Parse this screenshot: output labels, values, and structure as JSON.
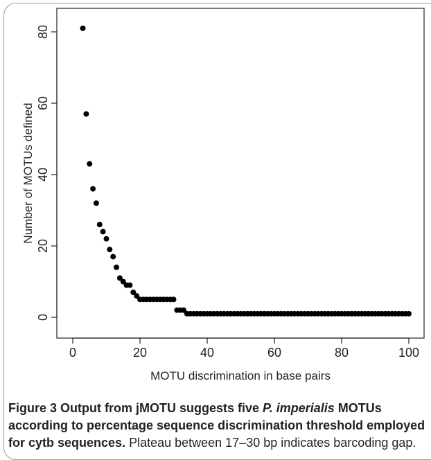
{
  "chart_data": {
    "type": "scatter",
    "title": "",
    "xlabel": "MOTU discrimination in base pairs",
    "ylabel": "Number of MOTUs defined",
    "xlim": [
      0,
      100
    ],
    "ylim": [
      0,
      80
    ],
    "xticks": [
      "0",
      "20",
      "40",
      "60",
      "80",
      "100"
    ],
    "yticks": [
      "0",
      "20",
      "40",
      "60",
      "80"
    ],
    "grid": false,
    "marker_color": "#000000",
    "x": [
      3,
      4,
      5,
      6,
      7,
      8,
      9,
      10,
      11,
      12,
      13,
      14,
      15,
      16,
      17,
      18,
      19,
      20,
      21,
      22,
      23,
      24,
      25,
      26,
      27,
      28,
      29,
      30,
      31,
      32,
      33,
      34,
      35,
      36,
      37,
      38,
      39,
      40,
      41,
      42,
      43,
      44,
      45,
      46,
      47,
      48,
      49,
      50,
      51,
      52,
      53,
      54,
      55,
      56,
      57,
      58,
      59,
      60,
      61,
      62,
      63,
      64,
      65,
      66,
      67,
      68,
      69,
      70,
      71,
      72,
      73,
      74,
      75,
      76,
      77,
      78,
      79,
      80,
      81,
      82,
      83,
      84,
      85,
      86,
      87,
      88,
      89,
      90,
      91,
      92,
      93,
      94,
      95,
      96,
      97,
      98,
      99,
      100
    ],
    "y": [
      81,
      57,
      43,
      36,
      32,
      26,
      24,
      22,
      19,
      17,
      14,
      11,
      10,
      9,
      9,
      7,
      6,
      5,
      5,
      5,
      5,
      5,
      5,
      5,
      5,
      5,
      5,
      5,
      2,
      2,
      2,
      1,
      1,
      1,
      1,
      1,
      1,
      1,
      1,
      1,
      1,
      1,
      1,
      1,
      1,
      1,
      1,
      1,
      1,
      1,
      1,
      1,
      1,
      1,
      1,
      1,
      1,
      1,
      1,
      1,
      1,
      1,
      1,
      1,
      1,
      1,
      1,
      1,
      1,
      1,
      1,
      1,
      1,
      1,
      1,
      1,
      1,
      1,
      1,
      1,
      1,
      1,
      1,
      1,
      1,
      1,
      1,
      1,
      1,
      1,
      1,
      1,
      1,
      1,
      1,
      1,
      1,
      1
    ]
  },
  "caption": {
    "lead_parts": [
      "Figure 3 Output from jMOTU suggests five ",
      "P. imperialis",
      " MOTUs according to percentage sequence discrimination threshold employed for cytb sequences."
    ],
    "rest": " Plateau between 17–30 bp indicates barcoding gap."
  }
}
